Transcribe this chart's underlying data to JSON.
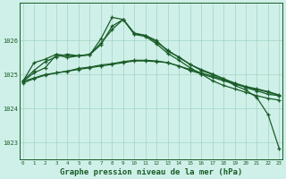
{
  "bg_color": "#cff0e8",
  "grid_color": "#a0d4c4",
  "line_color": "#1a5c28",
  "xlabel": "Graphe pression niveau de la mer (hPa)",
  "xlabel_fontsize": 6.5,
  "xticks": [
    0,
    1,
    2,
    3,
    4,
    5,
    6,
    7,
    8,
    9,
    10,
    11,
    12,
    13,
    14,
    15,
    16,
    17,
    18,
    19,
    20,
    21,
    22,
    23
  ],
  "yticks": [
    1023,
    1024,
    1025,
    1026
  ],
  "ylim": [
    1022.5,
    1027.1
  ],
  "xlim": [
    -0.3,
    23.3
  ],
  "series1": {
    "x": [
      0,
      1,
      2,
      3,
      4,
      5,
      6,
      7,
      8,
      9,
      10,
      11,
      12,
      13,
      14,
      15,
      16,
      17,
      18,
      19,
      20,
      21,
      22,
      23
    ],
    "y": [
      1024.8,
      1024.9,
      1025.0,
      1025.05,
      1025.1,
      1025.15,
      1025.2,
      1025.25,
      1025.3,
      1025.35,
      1025.4,
      1025.4,
      1025.38,
      1025.35,
      1025.25,
      1025.15,
      1025.05,
      1024.95,
      1024.85,
      1024.75,
      1024.65,
      1024.58,
      1024.5,
      1024.4
    ]
  },
  "series2": {
    "x": [
      0,
      1,
      2,
      3,
      4,
      5,
      6,
      7,
      8,
      9,
      10,
      11,
      12,
      13,
      14,
      15,
      16,
      17,
      18,
      19,
      20,
      21,
      22,
      23
    ],
    "y": [
      1024.75,
      1024.88,
      1024.98,
      1025.05,
      1025.1,
      1025.18,
      1025.22,
      1025.28,
      1025.32,
      1025.38,
      1025.42,
      1025.42,
      1025.4,
      1025.35,
      1025.25,
      1025.12,
      1025.02,
      1024.92,
      1024.82,
      1024.72,
      1024.63,
      1024.56,
      1024.48,
      1024.38
    ]
  },
  "series3": {
    "x": [
      0,
      1,
      2,
      3,
      4,
      5,
      6,
      7,
      8,
      9,
      10,
      11,
      12,
      13,
      14,
      15,
      16,
      17,
      18,
      19,
      20,
      21,
      22,
      23
    ],
    "y": [
      1024.8,
      1025.35,
      1025.45,
      1025.6,
      1025.55,
      1025.55,
      1025.58,
      1026.05,
      1026.68,
      1026.62,
      1026.2,
      1026.15,
      1025.95,
      1025.72,
      1025.5,
      1025.3,
      1025.12,
      1025.0,
      1024.88,
      1024.75,
      1024.62,
      1024.52,
      1024.42,
      1024.38
    ]
  },
  "series4": {
    "x": [
      0,
      1,
      2,
      3,
      4,
      5,
      6,
      7,
      8,
      9,
      10,
      11,
      12,
      13,
      14,
      15,
      16,
      17,
      18,
      19,
      20,
      21,
      22,
      23
    ],
    "y": [
      1024.8,
      1025.05,
      1025.2,
      1025.58,
      1025.5,
      1025.55,
      1025.58,
      1025.88,
      1026.42,
      1026.62,
      1026.18,
      1026.12,
      1025.9,
      1025.62,
      1025.42,
      1025.2,
      1025.02,
      1024.82,
      1024.68,
      1024.58,
      1024.48,
      1024.38,
      1024.3,
      1024.25
    ]
  },
  "series5": {
    "x": [
      0,
      1,
      2,
      3,
      4,
      5,
      6,
      7,
      8,
      9,
      10,
      11,
      12,
      13,
      14,
      15,
      16,
      17,
      18,
      19,
      20,
      21,
      22,
      23
    ],
    "y": [
      1024.82,
      1025.12,
      1025.38,
      1025.52,
      1025.6,
      1025.55,
      1025.6,
      1025.92,
      1026.32,
      1026.62,
      1026.22,
      1026.15,
      1026.0,
      1025.68,
      1025.52,
      1025.3,
      1025.15,
      1025.02,
      1024.88,
      1024.68,
      1024.55,
      1024.32,
      1023.82,
      1022.82
    ]
  }
}
